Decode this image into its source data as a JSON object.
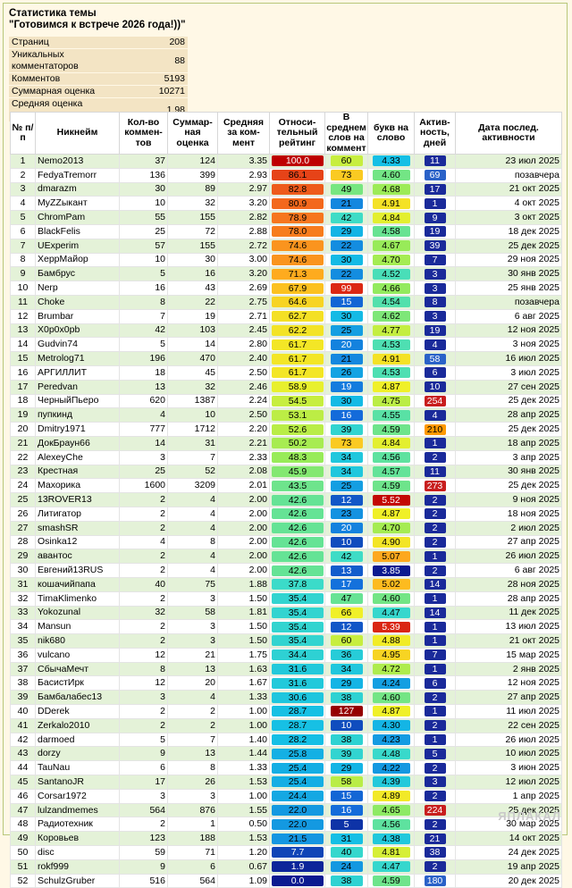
{
  "header": {
    "title_line1": "Статистика темы",
    "title_line2": "\"Готовимся к встрече 2026 года!))\""
  },
  "stats": [
    {
      "label": "Страниц",
      "value": "208"
    },
    {
      "label": "Уникальных комментаторов",
      "value": "88"
    },
    {
      "label": "Комментов",
      "value": "5193"
    },
    {
      "label": "Суммарная оценка",
      "value": "10271"
    },
    {
      "label": "Средняя оценка коммента",
      "value": "1.98"
    }
  ],
  "columns": [
    "№ п/п",
    "Никнейм",
    "Кол-во коммен-тов",
    "Суммар-ная оценка",
    "Средняя за ком-мент",
    "Относи-тельный рейтинг",
    "В среднем слов на коммент",
    "букв на слово",
    "Актив-ность, дней",
    "Дата послед. активности"
  ],
  "rows": [
    [
      "1",
      "Nemo2013",
      "37",
      "124",
      "3.35",
      "100.0",
      "60",
      "4.33",
      "11",
      "23 июл 2025"
    ],
    [
      "2",
      "FedyaTremorr",
      "136",
      "399",
      "2.93",
      "86.1",
      "73",
      "4.60",
      "69",
      "позавчера"
    ],
    [
      "3",
      "dmarazm",
      "30",
      "89",
      "2.97",
      "82.8",
      "49",
      "4.68",
      "17",
      "21 окт 2025"
    ],
    [
      "4",
      "MyZZыкант",
      "10",
      "32",
      "3.20",
      "80.9",
      "21",
      "4.91",
      "1",
      "4 окт 2025"
    ],
    [
      "5",
      "ChromPam",
      "55",
      "155",
      "2.82",
      "78.9",
      "42",
      "4.84",
      "9",
      "3 окт 2025"
    ],
    [
      "6",
      "BlackFelis",
      "25",
      "72",
      "2.88",
      "78.0",
      "29",
      "4.58",
      "19",
      "18 дек 2025"
    ],
    [
      "7",
      "UExperim",
      "57",
      "155",
      "2.72",
      "74.6",
      "22",
      "4.67",
      "39",
      "25 дек 2025"
    ],
    [
      "8",
      "ХеррМайор",
      "10",
      "30",
      "3.00",
      "74.6",
      "30",
      "4.70",
      "7",
      "29 ноя 2025"
    ],
    [
      "9",
      "Бамбрус",
      "5",
      "16",
      "3.20",
      "71.3",
      "22",
      "4.52",
      "3",
      "30 янв 2025"
    ],
    [
      "10",
      "Nerp",
      "16",
      "43",
      "2.69",
      "67.9",
      "99",
      "4.66",
      "3",
      "25 янв 2025"
    ],
    [
      "11",
      "Choke",
      "8",
      "22",
      "2.75",
      "64.6",
      "15",
      "4.54",
      "8",
      "позавчера"
    ],
    [
      "12",
      "Brumbar",
      "7",
      "19",
      "2.71",
      "62.7",
      "30",
      "4.62",
      "3",
      "6 авг 2025"
    ],
    [
      "13",
      "X0p0x0pb",
      "42",
      "103",
      "2.45",
      "62.2",
      "25",
      "4.77",
      "19",
      "12 ноя 2025"
    ],
    [
      "14",
      "Gudvin74",
      "5",
      "14",
      "2.80",
      "61.7",
      "20",
      "4.53",
      "4",
      "3 ноя 2025"
    ],
    [
      "15",
      "Metrolog71",
      "196",
      "470",
      "2.40",
      "61.7",
      "21",
      "4.91",
      "58",
      "16 июл 2025"
    ],
    [
      "16",
      "АРГИЛЛИТ",
      "18",
      "45",
      "2.50",
      "61.7",
      "26",
      "4.53",
      "6",
      "3 июл 2025"
    ],
    [
      "17",
      "Peredvan",
      "13",
      "32",
      "2.46",
      "58.9",
      "19",
      "4.87",
      "10",
      "27 сен 2025"
    ],
    [
      "18",
      "ЧерныйПьеро",
      "620",
      "1387",
      "2.24",
      "54.5",
      "30",
      "4.75",
      "254",
      "25 дек 2025"
    ],
    [
      "19",
      "пупкинд",
      "4",
      "10",
      "2.50",
      "53.1",
      "16",
      "4.55",
      "4",
      "28 апр 2025"
    ],
    [
      "20",
      "Dmitry1971",
      "777",
      "1712",
      "2.20",
      "52.6",
      "39",
      "4.59",
      "210",
      "25 дек 2025"
    ],
    [
      "21",
      "ДокБраун66",
      "14",
      "31",
      "2.21",
      "50.2",
      "73",
      "4.84",
      "1",
      "18 апр 2025"
    ],
    [
      "22",
      "AlexeyChe",
      "3",
      "7",
      "2.33",
      "48.3",
      "34",
      "4.56",
      "2",
      "3 апр 2025"
    ],
    [
      "23",
      "Крестная",
      "25",
      "52",
      "2.08",
      "45.9",
      "34",
      "4.57",
      "11",
      "30 янв 2025"
    ],
    [
      "24",
      "Махорика",
      "1600",
      "3209",
      "2.01",
      "43.5",
      "25",
      "4.59",
      "273",
      "25 дек 2025"
    ],
    [
      "25",
      "13ROVER13",
      "2",
      "4",
      "2.00",
      "42.6",
      "12",
      "5.52",
      "2",
      "9 ноя 2025"
    ],
    [
      "26",
      "Литигатор",
      "2",
      "4",
      "2.00",
      "42.6",
      "23",
      "4.87",
      "2",
      "18 ноя 2025"
    ],
    [
      "27",
      "smashSR",
      "2",
      "4",
      "2.00",
      "42.6",
      "20",
      "4.70",
      "2",
      "2 июл 2025"
    ],
    [
      "28",
      "Osinka12",
      "4",
      "8",
      "2.00",
      "42.6",
      "10",
      "4.90",
      "2",
      "27 апр 2025"
    ],
    [
      "29",
      "авантос",
      "2",
      "4",
      "2.00",
      "42.6",
      "42",
      "5.07",
      "1",
      "26 июл 2025"
    ],
    [
      "30",
      "Евгений13RUS",
      "2",
      "4",
      "2.00",
      "42.6",
      "13",
      "3.85",
      "2",
      "6 авг 2025"
    ],
    [
      "31",
      "кошачийпапа",
      "40",
      "75",
      "1.88",
      "37.8",
      "17",
      "5.02",
      "14",
      "28 ноя 2025"
    ],
    [
      "32",
      "TimaKlimenko",
      "2",
      "3",
      "1.50",
      "35.4",
      "47",
      "4.60",
      "1",
      "28 апр 2025"
    ],
    [
      "33",
      "Yokozunal",
      "32",
      "58",
      "1.81",
      "35.4",
      "66",
      "4.47",
      "14",
      "11 дек 2025"
    ],
    [
      "34",
      "Mansun",
      "2",
      "3",
      "1.50",
      "35.4",
      "12",
      "5.39",
      "1",
      "13 июл 2025"
    ],
    [
      "35",
      "nik680",
      "2",
      "3",
      "1.50",
      "35.4",
      "60",
      "4.88",
      "1",
      "21 окт 2025"
    ],
    [
      "36",
      "vulcano",
      "12",
      "21",
      "1.75",
      "34.4",
      "36",
      "4.95",
      "7",
      "15 мар 2025"
    ],
    [
      "37",
      "СбычаМечт",
      "8",
      "13",
      "1.63",
      "31.6",
      "34",
      "4.72",
      "1",
      "2 янв 2025"
    ],
    [
      "38",
      "БасистИрк",
      "12",
      "20",
      "1.67",
      "31.6",
      "29",
      "4.24",
      "6",
      "12 ноя 2025"
    ],
    [
      "39",
      "Бамбалабес13",
      "3",
      "4",
      "1.33",
      "30.6",
      "38",
      "4.60",
      "2",
      "27 апр 2025"
    ],
    [
      "40",
      "DDerek",
      "2",
      "2",
      "1.00",
      "28.7",
      "127",
      "4.87",
      "1",
      "11 июл 2025"
    ],
    [
      "41",
      "Zerkalo2010",
      "2",
      "2",
      "1.00",
      "28.7",
      "10",
      "4.30",
      "2",
      "22 сен 2025"
    ],
    [
      "42",
      "darmoed",
      "5",
      "7",
      "1.40",
      "28.2",
      "38",
      "4.23",
      "1",
      "26 июл 2025"
    ],
    [
      "43",
      "dorzy",
      "9",
      "13",
      "1.44",
      "25.8",
      "39",
      "4.48",
      "5",
      "10 июл 2025"
    ],
    [
      "44",
      "TauNau",
      "6",
      "8",
      "1.33",
      "25.4",
      "29",
      "4.22",
      "2",
      "3 июн 2025"
    ],
    [
      "45",
      "SantanoJR",
      "17",
      "26",
      "1.53",
      "25.4",
      "58",
      "4.39",
      "3",
      "12 июл 2025"
    ],
    [
      "46",
      "Corsar1972",
      "3",
      "3",
      "1.00",
      "24.4",
      "15",
      "4.89",
      "2",
      "1 апр 2025"
    ],
    [
      "47",
      "lulzandmemes",
      "564",
      "876",
      "1.55",
      "22.0",
      "16",
      "4.65",
      "224",
      "25 дек 2025"
    ],
    [
      "48",
      "Радиотехник",
      "2",
      "1",
      "0.50",
      "22.0",
      "5",
      "4.56",
      "2",
      "30 мар 2025"
    ],
    [
      "49",
      "Коровьев",
      "123",
      "188",
      "1.53",
      "21.5",
      "31",
      "4.38",
      "21",
      "14 окт 2025"
    ],
    [
      "50",
      "disc",
      "59",
      "71",
      "1.20",
      "7.7",
      "40",
      "4.81",
      "38",
      "24 дек 2025"
    ],
    [
      "51",
      "rokf999",
      "9",
      "6",
      "0.67",
      "1.9",
      "24",
      "4.47",
      "2",
      "19 апр 2025"
    ],
    [
      "52",
      "SchulzGruber",
      "516",
      "564",
      "1.09",
      "0.0",
      "38",
      "4.59",
      "180",
      "20 дек 2025"
    ]
  ],
  "colors": {
    "rating_high": "#c00000",
    "rating_low": "#0b1a90",
    "activity_dark": "#1a2a9a",
    "activity_red": "#c81e1e",
    "activity_orange": "#ff9900"
  }
}
